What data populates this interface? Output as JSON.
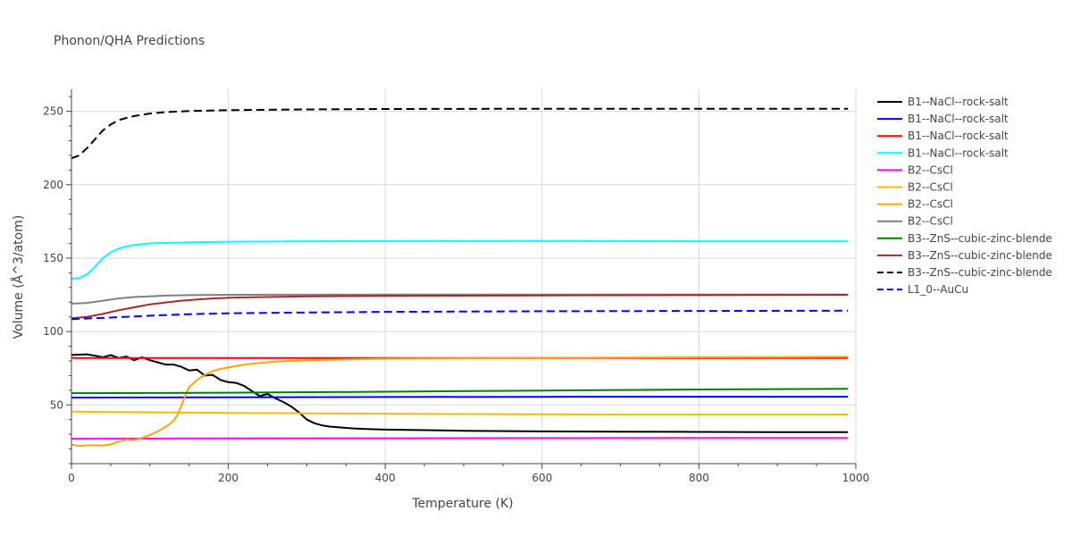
{
  "chart_data": {
    "type": "line",
    "title": "Phonon/QHA Predictions",
    "xlabel": "Temperature (K)",
    "ylabel": "Volume (Å^3/atom)",
    "xlim": [
      0,
      1000
    ],
    "ylim": [
      10,
      265
    ],
    "xticks": [
      0,
      200,
      400,
      600,
      800,
      1000
    ],
    "yticks": [
      50,
      100,
      150,
      200,
      250
    ],
    "grid": true,
    "legend_position": "right",
    "series": [
      {
        "name": "B1--NaCl--rock-salt",
        "color": "#000000",
        "dash": "solid",
        "points": [
          [
            0,
            84
          ],
          [
            20,
            84.5
          ],
          [
            30,
            83.5
          ],
          [
            40,
            82.5
          ],
          [
            50,
            84
          ],
          [
            60,
            82
          ],
          [
            70,
            83
          ],
          [
            80,
            80.5
          ],
          [
            90,
            82.5
          ],
          [
            100,
            80.5
          ],
          [
            110,
            79
          ],
          [
            120,
            77.5
          ],
          [
            130,
            77.5
          ],
          [
            140,
            76
          ],
          [
            150,
            73.5
          ],
          [
            160,
            74
          ],
          [
            170,
            70
          ],
          [
            180,
            70.5
          ],
          [
            190,
            67
          ],
          [
            200,
            65.5
          ],
          [
            210,
            65
          ],
          [
            220,
            63
          ],
          [
            230,
            59.5
          ],
          [
            240,
            56
          ],
          [
            250,
            57.5
          ],
          [
            260,
            54.5
          ],
          [
            270,
            52
          ],
          [
            280,
            49
          ],
          [
            290,
            45
          ],
          [
            300,
            40
          ],
          [
            310,
            37.5
          ],
          [
            320,
            36
          ],
          [
            330,
            35.2
          ],
          [
            340,
            34.8
          ],
          [
            360,
            34
          ],
          [
            380,
            33.5
          ],
          [
            400,
            33.2
          ],
          [
            450,
            32.8
          ],
          [
            500,
            32.4
          ],
          [
            600,
            32
          ],
          [
            700,
            31.8
          ],
          [
            800,
            31.6
          ],
          [
            900,
            31.5
          ],
          [
            990,
            31.5
          ]
        ]
      },
      {
        "name": "B1--NaCl--rock-salt",
        "color": "#0000ff",
        "dash": "solid",
        "points": [
          [
            0,
            55
          ],
          [
            200,
            55.2
          ],
          [
            400,
            55.4
          ],
          [
            600,
            55.5
          ],
          [
            800,
            55.6
          ],
          [
            990,
            55.6
          ]
        ]
      },
      {
        "name": "B1--NaCl--rock-salt",
        "color": "#ff0000",
        "dash": "solid",
        "points": [
          [
            0,
            82
          ],
          [
            200,
            82
          ],
          [
            400,
            82
          ],
          [
            600,
            82
          ],
          [
            800,
            82
          ],
          [
            990,
            82
          ]
        ]
      },
      {
        "name": "B1--NaCl--rock-salt",
        "color": "#00ffff",
        "dash": "solid",
        "points": [
          [
            0,
            136
          ],
          [
            10,
            136.5
          ],
          [
            20,
            139
          ],
          [
            30,
            144
          ],
          [
            40,
            150
          ],
          [
            50,
            154
          ],
          [
            60,
            156.5
          ],
          [
            70,
            158
          ],
          [
            80,
            159
          ],
          [
            100,
            160
          ],
          [
            150,
            160.8
          ],
          [
            200,
            161.2
          ],
          [
            300,
            161.5
          ],
          [
            400,
            161.6
          ],
          [
            600,
            161.7
          ],
          [
            800,
            161.5
          ],
          [
            990,
            161.5
          ]
        ]
      },
      {
        "name": "B2--CsCl",
        "color": "#ff00ff",
        "dash": "solid",
        "points": [
          [
            0,
            27
          ],
          [
            200,
            27.2
          ],
          [
            400,
            27.3
          ],
          [
            600,
            27.4
          ],
          [
            800,
            27.5
          ],
          [
            990,
            27.5
          ]
        ]
      },
      {
        "name": "B2--CsCl",
        "color": "#f0be00",
        "dash": "solid",
        "points": [
          [
            0,
            45.5
          ],
          [
            100,
            45
          ],
          [
            200,
            44.5
          ],
          [
            300,
            44.2
          ],
          [
            400,
            44
          ],
          [
            500,
            43.8
          ],
          [
            600,
            43.6
          ],
          [
            700,
            43.5
          ],
          [
            800,
            43.5
          ],
          [
            900,
            43.5
          ],
          [
            990,
            43.5
          ]
        ]
      },
      {
        "name": "B2--CsCl",
        "color": "#ffa500",
        "dash": "solid",
        "points": [
          [
            0,
            23
          ],
          [
            10,
            22
          ],
          [
            20,
            22.5
          ],
          [
            30,
            22.5
          ],
          [
            40,
            22.3
          ],
          [
            50,
            23
          ],
          [
            60,
            25
          ],
          [
            70,
            26.5
          ],
          [
            80,
            26
          ],
          [
            90,
            27.5
          ],
          [
            100,
            29.5
          ],
          [
            110,
            32
          ],
          [
            120,
            35
          ],
          [
            130,
            39
          ],
          [
            135,
            43
          ],
          [
            140,
            49
          ],
          [
            145,
            56
          ],
          [
            150,
            62
          ],
          [
            160,
            67
          ],
          [
            170,
            70.5
          ],
          [
            180,
            73
          ],
          [
            190,
            74.5
          ],
          [
            200,
            75.5
          ],
          [
            220,
            77.5
          ],
          [
            240,
            78.5
          ],
          [
            260,
            79.5
          ],
          [
            300,
            80.5
          ],
          [
            350,
            81
          ],
          [
            400,
            81.5
          ],
          [
            500,
            81.8
          ],
          [
            600,
            82
          ],
          [
            700,
            82.3
          ],
          [
            800,
            82.5
          ],
          [
            900,
            82.6
          ],
          [
            990,
            82.8
          ]
        ]
      },
      {
        "name": "B2--CsCl",
        "color": "#808080",
        "dash": "solid",
        "points": [
          [
            0,
            119
          ],
          [
            20,
            119.5
          ],
          [
            40,
            121
          ],
          [
            60,
            122.5
          ],
          [
            80,
            123.5
          ],
          [
            100,
            124
          ],
          [
            120,
            124.5
          ],
          [
            150,
            124.8
          ],
          [
            200,
            125
          ],
          [
            300,
            125.1
          ],
          [
            400,
            125.2
          ],
          [
            600,
            125.2
          ],
          [
            800,
            125.2
          ],
          [
            990,
            125.2
          ]
        ]
      },
      {
        "name": "B3--ZnS--cubic-zinc-blende",
        "color": "#008000",
        "dash": "solid",
        "points": [
          [
            0,
            58
          ],
          [
            200,
            58.3
          ],
          [
            400,
            59
          ],
          [
            600,
            59.8
          ],
          [
            800,
            60.5
          ],
          [
            990,
            61
          ]
        ]
      },
      {
        "name": "B3--ZnS--cubic-zinc-blende",
        "color": "#a52a2a",
        "dash": "solid",
        "points": [
          [
            0,
            109
          ],
          [
            20,
            110
          ],
          [
            40,
            112
          ],
          [
            60,
            114.5
          ],
          [
            80,
            116.5
          ],
          [
            100,
            118.5
          ],
          [
            120,
            119.8
          ],
          [
            140,
            121
          ],
          [
            160,
            121.8
          ],
          [
            180,
            122.5
          ],
          [
            200,
            123
          ],
          [
            250,
            123.5
          ],
          [
            300,
            124
          ],
          [
            400,
            124.3
          ],
          [
            600,
            124.6
          ],
          [
            800,
            124.8
          ],
          [
            990,
            125
          ]
        ]
      },
      {
        "name": "B3--ZnS--cubic-zinc-blende",
        "color": "#000000",
        "dash": "dash",
        "points": [
          [
            0,
            218
          ],
          [
            10,
            220
          ],
          [
            20,
            225
          ],
          [
            30,
            231
          ],
          [
            40,
            237
          ],
          [
            50,
            241
          ],
          [
            60,
            244
          ],
          [
            70,
            245.5
          ],
          [
            80,
            246.8
          ],
          [
            100,
            248.5
          ],
          [
            120,
            249.5
          ],
          [
            150,
            250.2
          ],
          [
            200,
            250.8
          ],
          [
            300,
            251.3
          ],
          [
            400,
            251.6
          ],
          [
            600,
            251.8
          ],
          [
            800,
            251.8
          ],
          [
            990,
            251.8
          ]
        ]
      },
      {
        "name": "L1_0--AuCu",
        "color": "#0000ff",
        "dash": "dash",
        "points": [
          [
            0,
            108.5
          ],
          [
            50,
            109.5
          ],
          [
            100,
            110.8
          ],
          [
            150,
            111.8
          ],
          [
            200,
            112.4
          ],
          [
            300,
            113
          ],
          [
            400,
            113.4
          ],
          [
            600,
            113.8
          ],
          [
            800,
            114
          ],
          [
            990,
            114.2
          ]
        ]
      }
    ]
  }
}
